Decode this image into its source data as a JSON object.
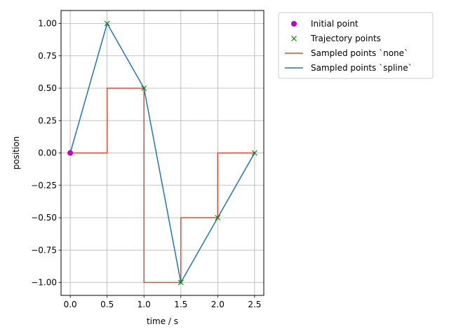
{
  "chart_data": {
    "type": "line",
    "xlabel": "time / s",
    "ylabel": "position",
    "xlim": [
      -0.125,
      2.625
    ],
    "ylim": [
      -1.1,
      1.1
    ],
    "grid": true,
    "legend_position": "outside-top-right",
    "x_ticks": [
      0.0,
      0.5,
      1.0,
      1.5,
      2.0,
      2.5
    ],
    "x_tick_labels": [
      "0.0",
      "0.5",
      "1.0",
      "1.5",
      "2.0",
      "2.5"
    ],
    "y_ticks": [
      1.0,
      0.75,
      0.5,
      0.25,
      0.0,
      -0.25,
      -0.5,
      -0.75,
      -1.0
    ],
    "y_tick_labels": [
      "1.00",
      "0.75",
      "0.50",
      "0.25",
      "0.00",
      "−0.25",
      "−0.50",
      "−0.75",
      "−1.00"
    ],
    "series": [
      {
        "name": "Initial point",
        "kind": "marker-circle",
        "color": "#bf00bf",
        "x": [
          0.0
        ],
        "y": [
          0.0
        ]
      },
      {
        "name": "Trajectory points",
        "kind": "marker-x",
        "color": "#008000",
        "x": [
          0.5,
          1.0,
          1.5,
          2.0,
          2.5
        ],
        "y": [
          1.0,
          0.5,
          -1.0,
          -0.5,
          0.0
        ]
      },
      {
        "name": "Sampled points `none`",
        "kind": "line",
        "color": "#e24a33",
        "x": [
          0.0,
          0.5,
          0.5,
          1.0,
          1.0,
          1.5,
          1.5,
          2.0,
          2.0,
          2.5
        ],
        "y": [
          0.0,
          0.0,
          0.5,
          0.5,
          -1.0,
          -1.0,
          -0.5,
          -0.5,
          0.0,
          0.0
        ]
      },
      {
        "name": "Sampled points `spline`",
        "kind": "line",
        "color": "#1f77b4",
        "x": [
          0.0,
          0.5,
          1.0,
          1.5,
          2.0,
          2.5
        ],
        "y": [
          0.0,
          1.0,
          0.5,
          -1.0,
          -0.5,
          0.0
        ]
      }
    ]
  }
}
